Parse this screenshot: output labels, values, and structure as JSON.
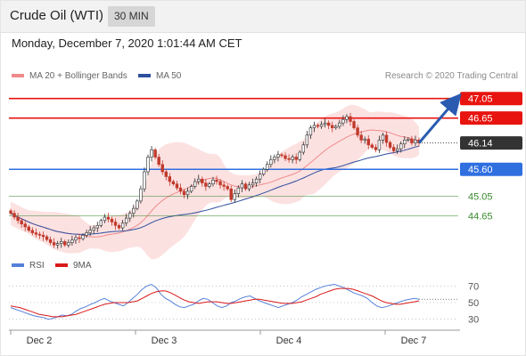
{
  "header": {
    "instrument": "Crude Oil (WTI)",
    "interval": "30 MIN",
    "datetime": "Monday, December 7, 2020 1:01:44 AM CET"
  },
  "legend": {
    "ma20": "MA 20 + Bollinger Bands",
    "ma50": "MA 50",
    "copyright": "Research © 2020 Trading Central",
    "rsi": "RSI",
    "rsi_ma": "9MA"
  },
  "colors": {
    "resistance": "#e8140f",
    "support": "#2f6fe0",
    "target": "#3a8a2e",
    "price": "#333333",
    "bollinger_fill": "#fcdede",
    "ma20": "#f08a8a",
    "ma50": "#2d4f9e",
    "arrow": "#2b5bb0",
    "rsi": "#5580d8",
    "rsi_ma": "#d91919"
  },
  "chart_data": [
    {
      "type": "candlestick",
      "title": "Crude Oil (WTI)",
      "interval": "30 MIN",
      "x_tick_labels": [
        "Dec 2",
        "Dec 3",
        "Dec 4",
        "Dec 7"
      ],
      "ylim": [
        44.0,
        47.3
      ],
      "current_price": 46.14,
      "levels": [
        {
          "value": 47.05,
          "label": "47.05",
          "kind": "resistance"
        },
        {
          "value": 46.65,
          "label": "46.65",
          "kind": "resistance"
        },
        {
          "value": 46.14,
          "label": "46.14",
          "kind": "price"
        },
        {
          "value": 45.6,
          "label": "45.60",
          "kind": "support"
        },
        {
          "value": 45.05,
          "label": "45.05",
          "kind": "target"
        },
        {
          "value": 44.65,
          "label": "44.65",
          "kind": "target"
        }
      ],
      "close": [
        44.7,
        44.62,
        44.55,
        44.48,
        44.42,
        44.35,
        44.3,
        44.27,
        44.25,
        44.22,
        44.16,
        44.1,
        44.05,
        44.08,
        44.12,
        44.05,
        44.1,
        44.15,
        44.2,
        44.18,
        44.25,
        44.3,
        44.35,
        44.4,
        44.45,
        44.55,
        44.62,
        44.58,
        44.52,
        44.45,
        44.4,
        44.5,
        44.6,
        44.7,
        44.8,
        44.95,
        45.2,
        45.55,
        45.85,
        46.0,
        45.85,
        45.7,
        45.55,
        45.45,
        45.35,
        45.3,
        45.22,
        45.15,
        45.08,
        45.15,
        45.25,
        45.35,
        45.4,
        45.32,
        45.25,
        45.3,
        45.38,
        45.35,
        45.28,
        45.25,
        45.2,
        44.98,
        45.1,
        45.22,
        45.3,
        45.2,
        45.28,
        45.32,
        45.4,
        45.5,
        45.6,
        45.7,
        45.8,
        45.85,
        45.9,
        45.88,
        45.82,
        45.8,
        45.85,
        45.8,
        45.95,
        46.1,
        46.3,
        46.45,
        46.5,
        46.48,
        46.52,
        46.55,
        46.5,
        46.45,
        46.48,
        46.55,
        46.62,
        46.68,
        46.58,
        46.45,
        46.3,
        46.2,
        46.22,
        46.1,
        46.05,
        46.0,
        46.2,
        46.3,
        46.15,
        46.05,
        45.98,
        46.02,
        46.12,
        46.2,
        46.22,
        46.14,
        46.2,
        46.14
      ]
    },
    {
      "type": "line",
      "title": "RSI",
      "ylim": [
        20,
        80
      ],
      "y_tick_labels": [
        "70",
        "50",
        "30"
      ],
      "series": [
        {
          "name": "RSI",
          "values": [
            44,
            42,
            40,
            38,
            36,
            34,
            33,
            32,
            30,
            31,
            33,
            35,
            34,
            36,
            40,
            43,
            45,
            48,
            50,
            53,
            55,
            52,
            50,
            48,
            46,
            50,
            55,
            60,
            66,
            70,
            72,
            68,
            60,
            55,
            52,
            48,
            45,
            44,
            46,
            48,
            52,
            55,
            54,
            50,
            46,
            44,
            46,
            50,
            52,
            55,
            57,
            58,
            55,
            52,
            50,
            48,
            46,
            44,
            46,
            48,
            50,
            53,
            57,
            60,
            63,
            66,
            68,
            70,
            71,
            72,
            70,
            68,
            65,
            62,
            60,
            58,
            55,
            50,
            46,
            44,
            45,
            47,
            49,
            51,
            53,
            54,
            55,
            54
          ]
        },
        {
          "name": "9MA",
          "values": [
            46,
            45,
            44,
            42,
            40,
            38,
            36,
            35,
            34,
            33,
            33,
            33,
            34,
            35,
            36,
            38,
            40,
            42,
            44,
            46,
            48,
            49,
            50,
            50,
            50,
            50,
            51,
            52,
            55,
            58,
            61,
            63,
            64,
            64,
            62,
            59,
            56,
            53,
            51,
            50,
            49,
            50,
            51,
            51,
            51,
            50,
            49,
            49,
            50,
            51,
            52,
            53,
            54,
            54,
            53,
            52,
            51,
            50,
            49,
            49,
            49,
            50,
            51,
            53,
            55,
            57,
            60,
            62,
            64,
            66,
            67,
            67,
            67,
            66,
            64,
            62,
            60,
            58,
            55,
            52,
            50,
            49,
            48,
            48,
            49,
            50,
            51,
            52
          ]
        }
      ]
    }
  ]
}
